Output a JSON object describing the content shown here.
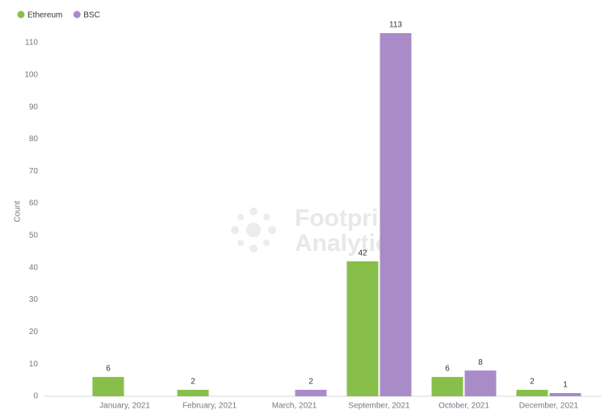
{
  "chart_data": {
    "type": "bar",
    "categories": [
      "January, 2021",
      "February, 2021",
      "March, 2021",
      "September, 2021",
      "October, 2021",
      "December, 2021"
    ],
    "series": [
      {
        "name": "Ethereum",
        "color": "#88bf4b",
        "values": [
          6,
          2,
          null,
          42,
          6,
          2
        ]
      },
      {
        "name": "BSC",
        "color": "#a98bc8",
        "values": [
          null,
          null,
          2,
          113,
          8,
          1
        ]
      }
    ],
    "y_label": "Count",
    "ylim": [
      0,
      115
    ],
    "yticks": [
      0,
      10,
      20,
      30,
      40,
      50,
      60,
      70,
      80,
      90,
      100,
      110
    ],
    "legend": "top-left",
    "watermark": [
      "Footprint",
      "Analytics"
    ]
  }
}
